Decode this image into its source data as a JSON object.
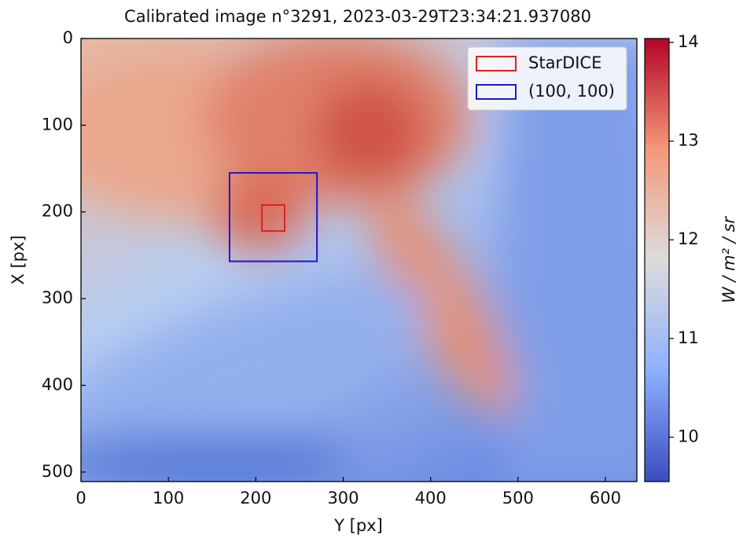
{
  "chart_data": {
    "type": "heatmap",
    "title": "Calibrated image n°3291, 2023-03-29T23:34:21.937080",
    "x_label": "Y [px]",
    "y_label": "X [px]",
    "xlim": [
      0,
      636
    ],
    "xticks": [
      0,
      100,
      200,
      300,
      400,
      500,
      600
    ],
    "ylim": [
      511,
      0
    ],
    "yticks": [
      0,
      100,
      200,
      300,
      400,
      500
    ],
    "colorbar": {
      "label": "W / m² / sr",
      "lim": [
        9.55,
        14.04
      ],
      "ticks": [
        10,
        11,
        12,
        13,
        14
      ]
    },
    "legend": "upper right",
    "regions": [
      {
        "name": "StarDICE",
        "color": "#e02020",
        "x": [
          207,
          233
        ],
        "y": [
          192,
          222
        ]
      },
      {
        "name": "(100, 100)",
        "color": "#1a1ac8",
        "x": [
          170,
          270
        ],
        "y": [
          155,
          257
        ]
      }
    ]
  }
}
